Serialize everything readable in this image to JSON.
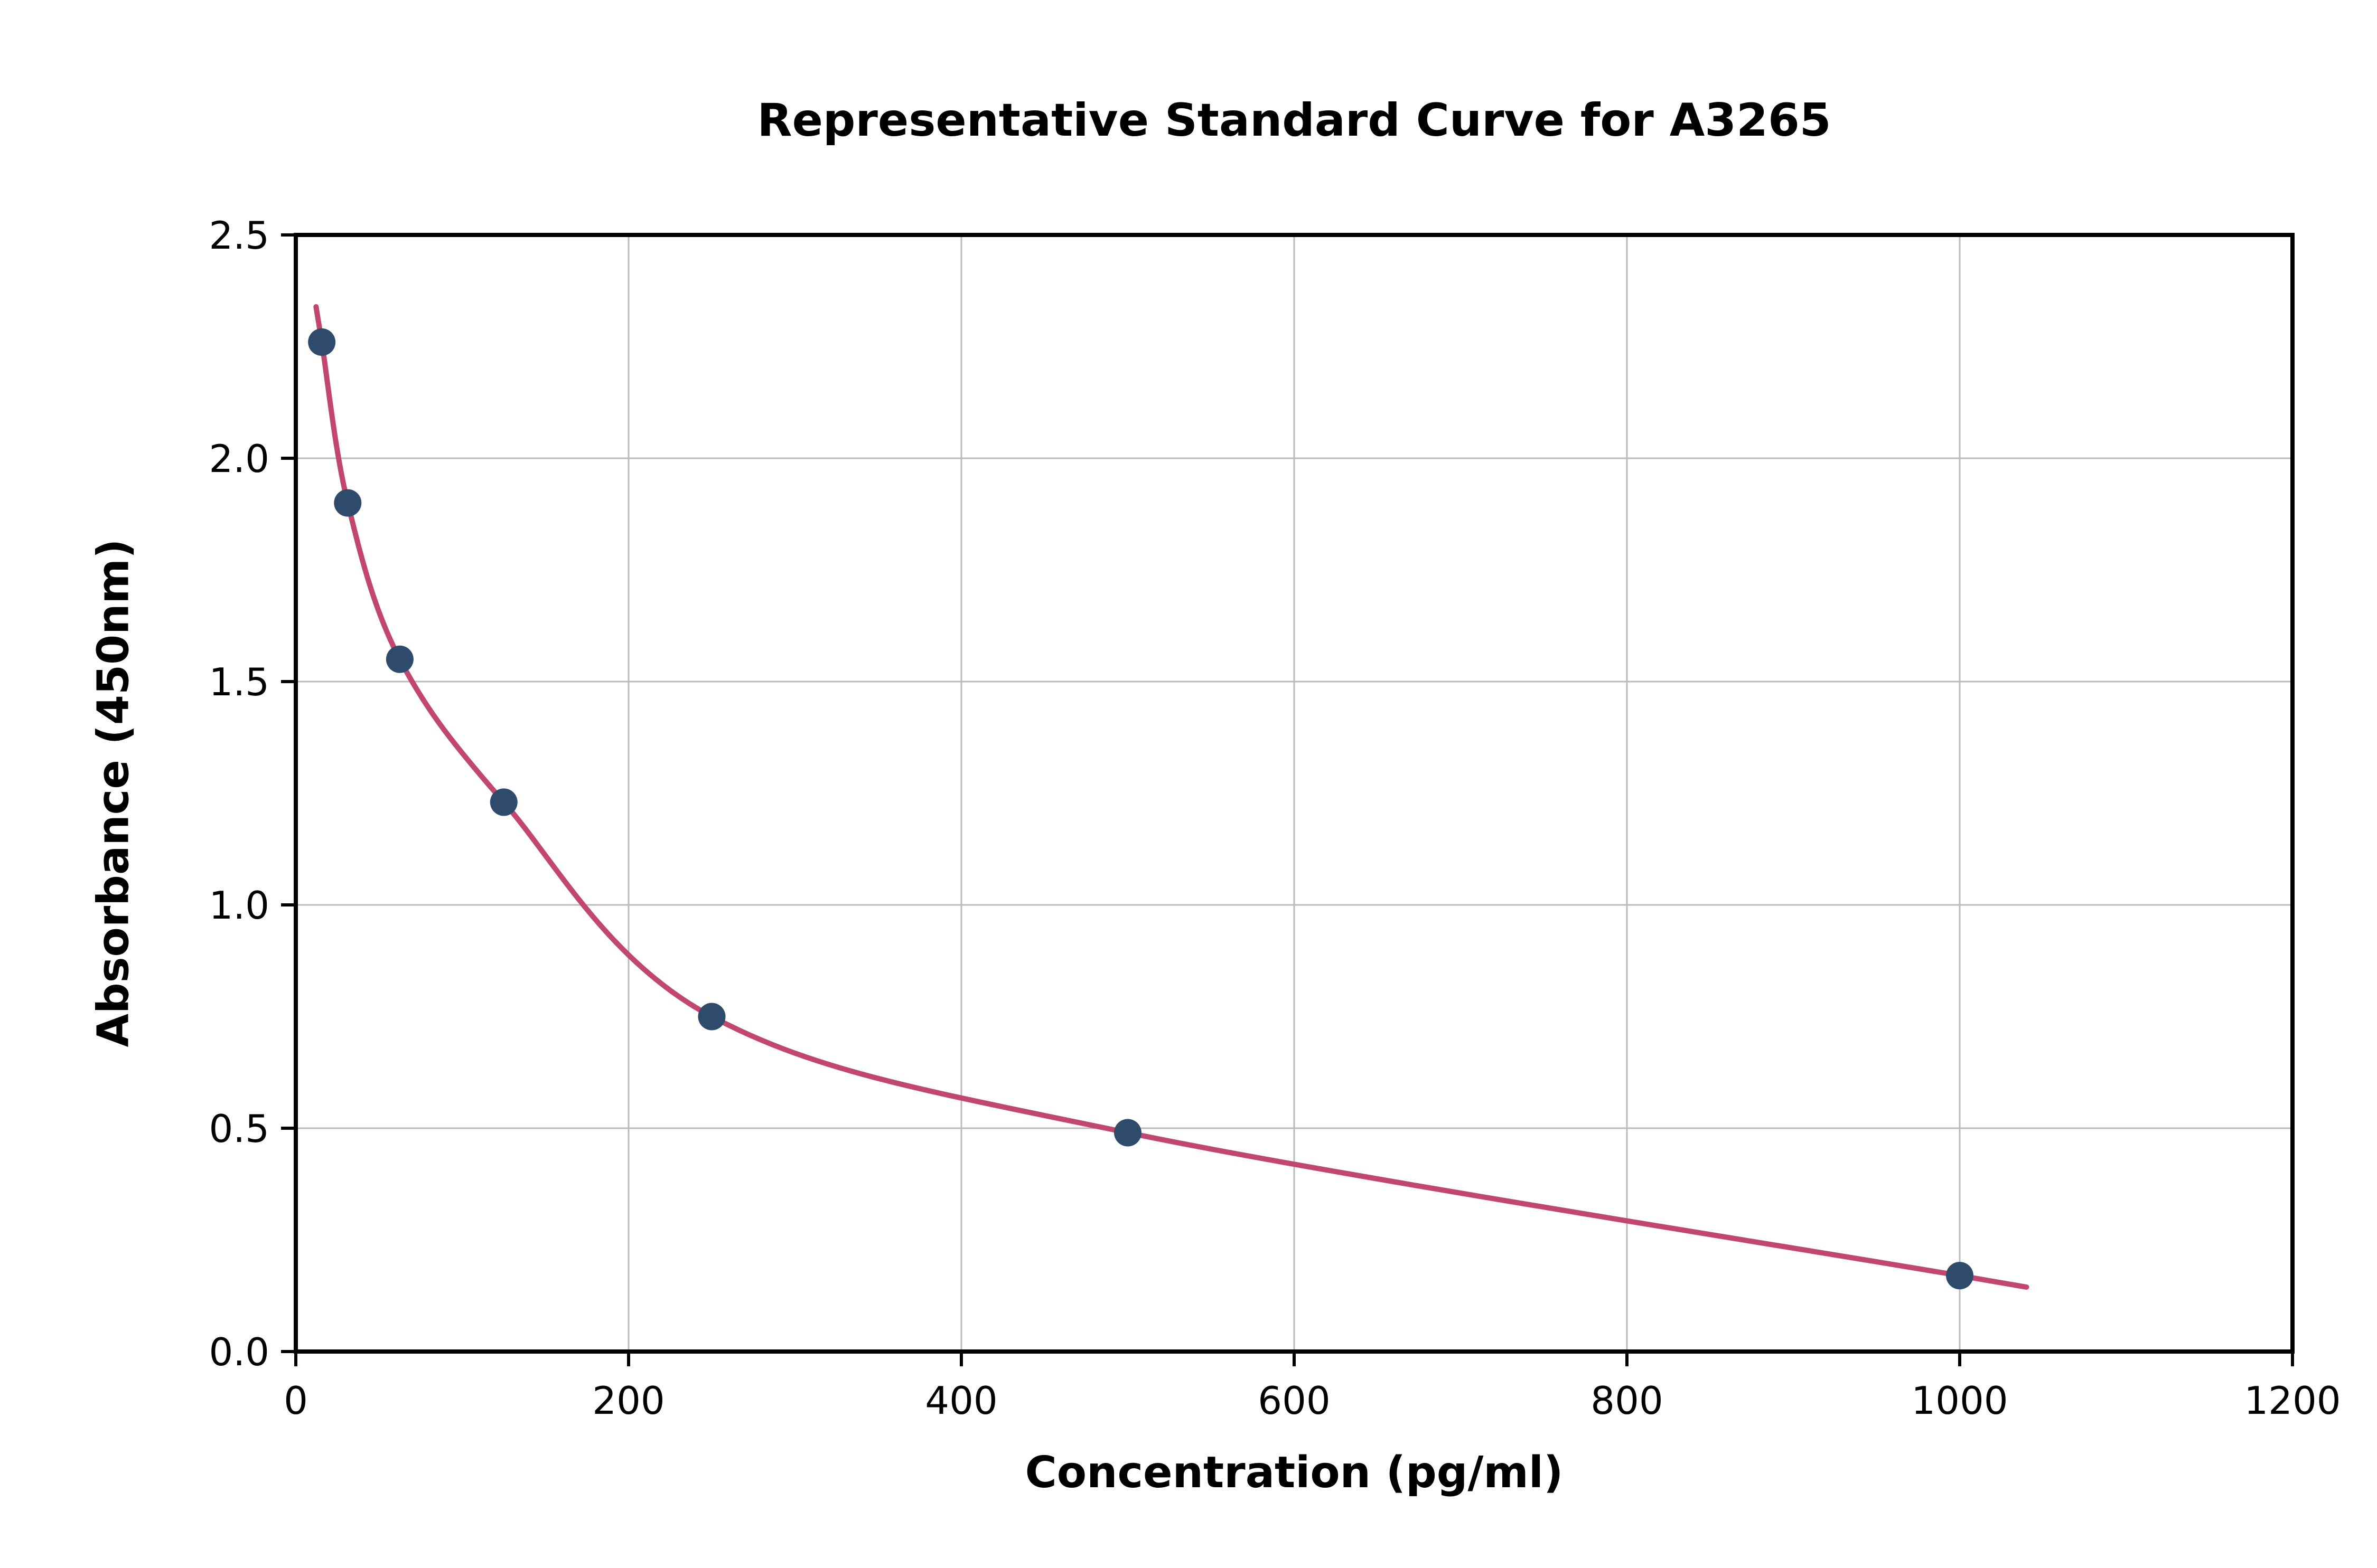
{
  "chart_data": {
    "type": "scatter",
    "title": "Representative Standard Curve for A3265",
    "xlabel": "Concentration (pg/ml)",
    "ylabel": "Absorbance (450nm)",
    "xlim": [
      0,
      1200
    ],
    "ylim": [
      0,
      2.5
    ],
    "x_ticks": [
      0,
      200,
      400,
      600,
      800,
      1000,
      1200
    ],
    "x_tick_labels": [
      "0",
      "200",
      "400",
      "600",
      "800",
      "1000",
      "1200"
    ],
    "y_ticks": [
      0,
      0.5,
      1.0,
      1.5,
      2.0,
      2.5
    ],
    "y_tick_labels": [
      "0.0",
      "0.5",
      "1.0",
      "1.5",
      "2.0",
      "2.5"
    ],
    "grid": true,
    "points": {
      "x": [
        15.6,
        31.2,
        62.5,
        125,
        250,
        500,
        1000
      ],
      "y": [
        2.26,
        1.9,
        1.55,
        1.23,
        0.75,
        0.49,
        0.17
      ]
    },
    "curve_type": "4-parameter logistic fit",
    "colors": {
      "point": "#2f4b6b",
      "curve": "#c2476e",
      "grid": "#bbbbbb",
      "axis": "#000000",
      "background": "#ffffff"
    }
  }
}
